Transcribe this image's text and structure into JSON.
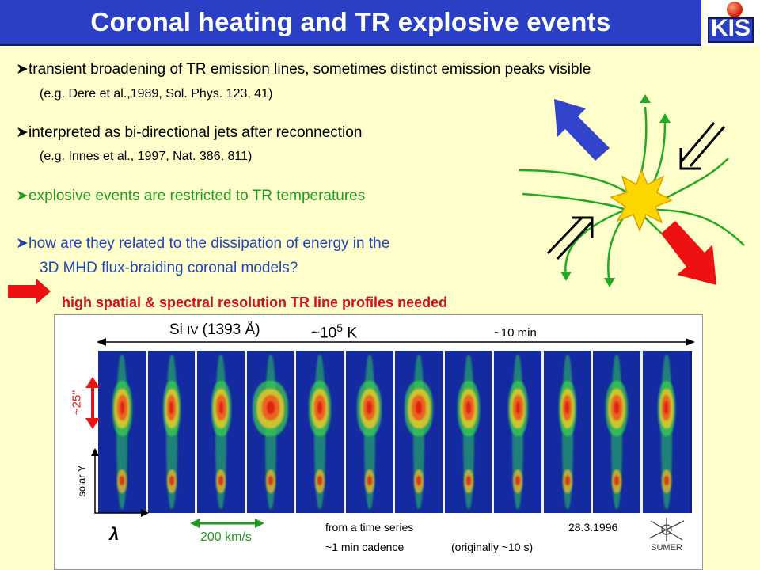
{
  "title": "Coronal heating and TR explosive events",
  "logo": {
    "text": "KIS"
  },
  "bullets": [
    {
      "text": "transient broadening of TR emission lines, sometimes distinct emission peaks visible",
      "color": "#000000"
    },
    {
      "text": "interpreted as bi-directional jets after reconnection",
      "color": "#000000"
    },
    {
      "text": "explosive events are restricted to TR temperatures",
      "color": "#229922"
    },
    {
      "text": "how are they related to the dissipation of energy in the",
      "color": "#2244bb"
    }
  ],
  "refs": {
    "dere": "(e.g. Dere et al.,1989, Sol. Phys. 123, 41)",
    "innes": "(e.g. Innes et al., 1997, Nat. 386, 811)",
    "continuation": "3D MHD flux-braiding coronal models?"
  },
  "conclusion": "high spatial & spectral resolution TR line profiles needed",
  "figure": {
    "line_label_prefix": "Si",
    "line_label_ion": "IV",
    "line_label_wavelength": "(1393 Å)",
    "temperature_prefix": "~10",
    "temperature_exponent": "5",
    "temperature_unit": "K",
    "duration": "~10 min",
    "spatial_scale": "~25''",
    "y_axis": "solar Y",
    "x_axis_symbol": "λ",
    "velocity_scale": "200 km/s",
    "source_line1": "from a time series",
    "source_line2": "~1 min cadence",
    "source_note": "(originally ~10 s)",
    "date": "28.3.1996",
    "instrument": "SUMER",
    "panel_count": 12
  },
  "colors": {
    "title_bar": "#2a3fc4",
    "background": "#ffffcc",
    "field_lines": "#22aa22",
    "arrow_blue": "#3344cc",
    "arrow_red": "#ee1111",
    "star": "#ffd700"
  }
}
